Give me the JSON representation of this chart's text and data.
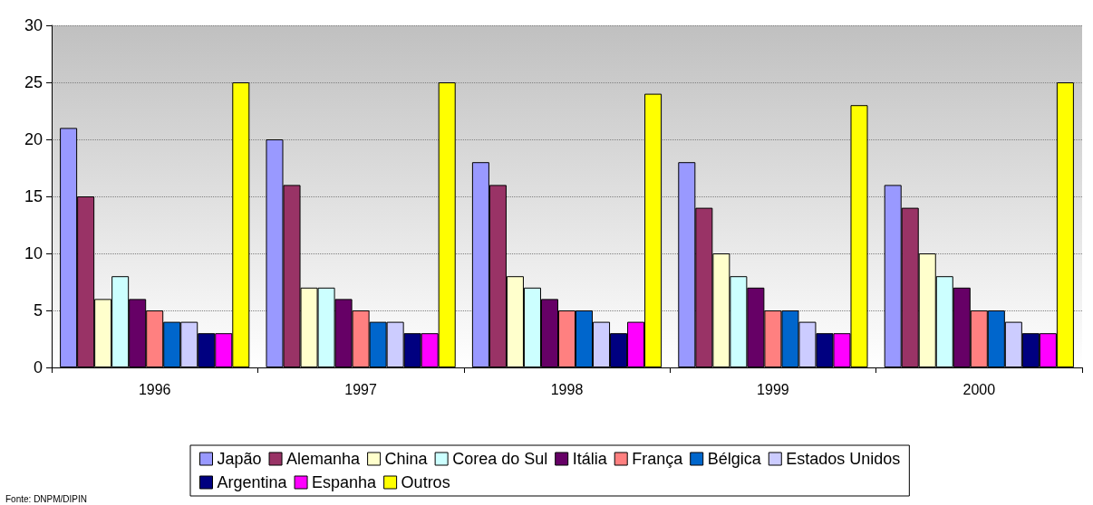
{
  "chart_data": {
    "type": "bar",
    "categories": [
      "1996",
      "1997",
      "1998",
      "1999",
      "2000"
    ],
    "series": [
      {
        "name": "Japão",
        "color": "#9999ff",
        "values": [
          21,
          20,
          18,
          18,
          16
        ]
      },
      {
        "name": "Alemanha",
        "color": "#993366",
        "values": [
          15,
          16,
          16,
          14,
          14
        ]
      },
      {
        "name": "China",
        "color": "#ffffcc",
        "values": [
          6,
          7,
          8,
          10,
          10
        ]
      },
      {
        "name": "Corea do Sul",
        "color": "#ccffff",
        "values": [
          8,
          7,
          7,
          8,
          8
        ]
      },
      {
        "name": "Itália",
        "color": "#660066",
        "values": [
          6,
          6,
          6,
          7,
          7
        ]
      },
      {
        "name": "França",
        "color": "#ff8080",
        "values": [
          5,
          5,
          5,
          5,
          5
        ]
      },
      {
        "name": "Bélgica",
        "color": "#0066cc",
        "values": [
          4,
          4,
          5,
          5,
          5
        ]
      },
      {
        "name": "Estados Unidos",
        "color": "#ccccff",
        "values": [
          4,
          4,
          4,
          4,
          4
        ]
      },
      {
        "name": "Argentina",
        "color": "#000080",
        "values": [
          3,
          3,
          3,
          3,
          3
        ]
      },
      {
        "name": "Espanha",
        "color": "#ff00ff",
        "values": [
          3,
          3,
          4,
          3,
          3
        ]
      },
      {
        "name": "Outros",
        "color": "#ffff00",
        "values": [
          25,
          25,
          24,
          23,
          25
        ]
      }
    ],
    "ylim": [
      0,
      30
    ],
    "yticks": [
      0,
      5,
      10,
      15,
      20,
      25,
      30
    ],
    "grid": "y",
    "legend": "bottom",
    "annotations": [
      "Fonte: DNPM/DIPIN"
    ]
  }
}
